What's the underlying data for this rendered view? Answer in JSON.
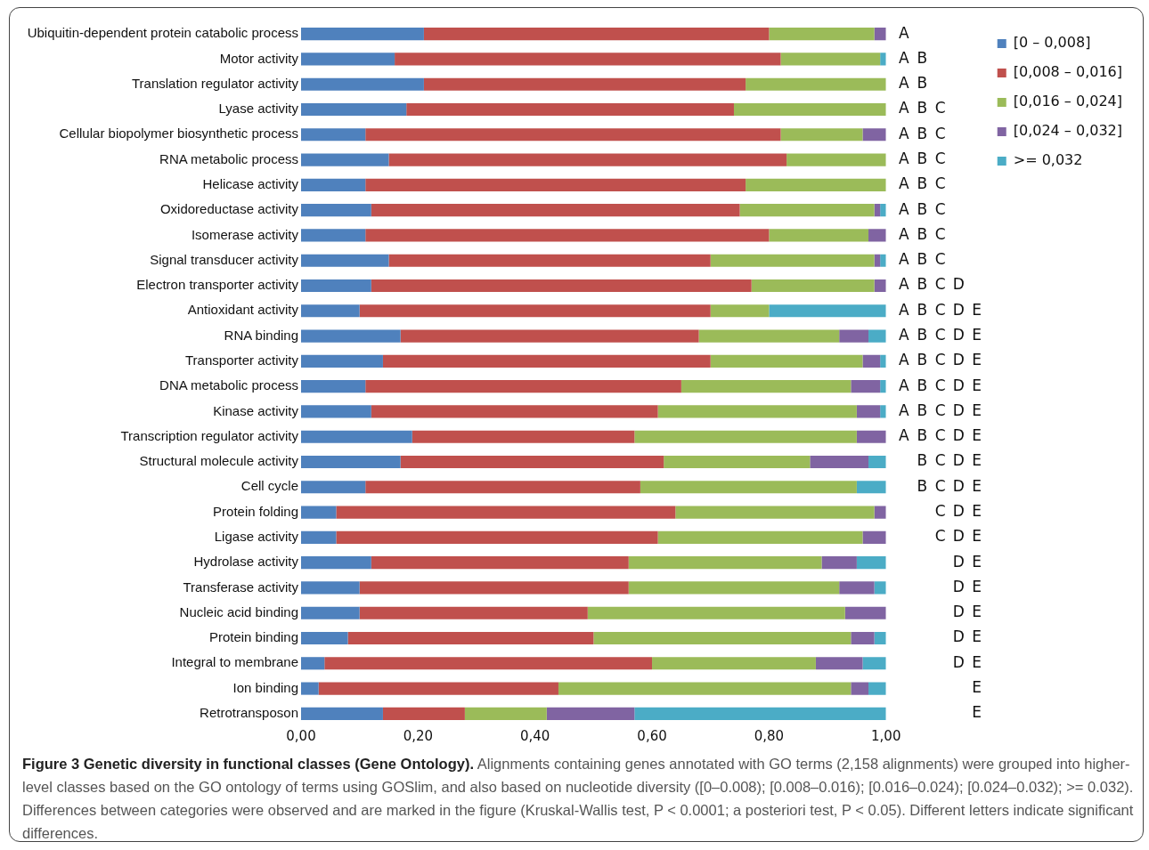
{
  "chart_data": {
    "type": "bar",
    "orientation": "horizontal",
    "stacked": true,
    "title": "Figure 3 Genetic diversity in functional classes (Gene Ontology).",
    "subtitle": "Alignments containing genes annotated with GO terms (2,158 alignments) were grouped into higher-level classes based on the GO ontology of terms using GOSlim, and also based on nucleotide diversity ([0–0.008); [0.008–0.016); [0.016–0.024); [0.024–0.032); >= 0.032). Differences between categories were observed and are marked in the figure (Kruskal-Wallis test, P < 0.0001; a posteriori test, P < 0.05). Different letters indicate significant differences.",
    "categories": [
      "Ubiquitin-dependent protein catabolic process",
      "Motor activity",
      "Translation regulator activity",
      "Lyase activity",
      "Cellular biopolymer biosynthetic process",
      "RNA metabolic process",
      "Helicase activity",
      "Oxidoreductase activity",
      "Isomerase activity",
      "Signal transducer activity",
      "Electron transporter activity",
      "Antioxidant activity",
      "RNA binding",
      "Transporter activity",
      "DNA metabolic process",
      "Kinase activity",
      "Transcription regulator activity",
      "Structural molecule activity",
      "Cell cycle",
      "Protein folding",
      "Ligase activity",
      "Hydrolase activity",
      "Transferase activity",
      "Nucleic acid binding",
      "Protein binding",
      "Integral to membrane",
      "Ion binding",
      "Retrotransposon"
    ],
    "series": [
      {
        "name": "[0 – 0,008]",
        "color": "#4f81bd",
        "values": [
          0.21,
          0.16,
          0.21,
          0.18,
          0.11,
          0.15,
          0.11,
          0.12,
          0.11,
          0.15,
          0.12,
          0.1,
          0.17,
          0.14,
          0.11,
          0.12,
          0.19,
          0.17,
          0.11,
          0.06,
          0.06,
          0.12,
          0.1,
          0.1,
          0.08,
          0.04,
          0.03,
          0.14
        ]
      },
      {
        "name": "[0,008 – 0,016]",
        "color": "#c0504d",
        "values": [
          0.59,
          0.66,
          0.55,
          0.56,
          0.71,
          0.68,
          0.65,
          0.63,
          0.69,
          0.55,
          0.65,
          0.6,
          0.51,
          0.56,
          0.54,
          0.49,
          0.38,
          0.45,
          0.47,
          0.58,
          0.55,
          0.44,
          0.46,
          0.39,
          0.42,
          0.56,
          0.41,
          0.14
        ]
      },
      {
        "name": "[0,016 – 0,024]",
        "color": "#9bbb59",
        "values": [
          0.18,
          0.17,
          0.24,
          0.26,
          0.14,
          0.17,
          0.24,
          0.23,
          0.17,
          0.28,
          0.21,
          0.1,
          0.24,
          0.26,
          0.29,
          0.34,
          0.38,
          0.25,
          0.37,
          0.34,
          0.35,
          0.33,
          0.36,
          0.44,
          0.44,
          0.28,
          0.5,
          0.14
        ]
      },
      {
        "name": "[0,024 – 0,032]",
        "color": "#8064a2",
        "values": [
          0.02,
          0,
          0,
          0,
          0.04,
          0,
          0,
          0.01,
          0.03,
          0.01,
          0.02,
          0,
          0.05,
          0.03,
          0.05,
          0.04,
          0.05,
          0.1,
          0,
          0.02,
          0.04,
          0.06,
          0.06,
          0.07,
          0.04,
          0.08,
          0.03,
          0.15
        ]
      },
      {
        "name": ">= 0,032",
        "color": "#4bacc6",
        "values": [
          0,
          0.01,
          0,
          0,
          0,
          0,
          0,
          0.01,
          0,
          0.01,
          0,
          0.2,
          0.03,
          0.01,
          0.01,
          0.01,
          0,
          0.03,
          0.05,
          0,
          0,
          0.05,
          0.02,
          0,
          0.02,
          0.04,
          0.03,
          0.43
        ]
      }
    ],
    "xlim": [
      0,
      1
    ],
    "xticks": [
      {
        "value": 0,
        "label": "0,00"
      },
      {
        "value": 0.2,
        "label": "0,20"
      },
      {
        "value": 0.4,
        "label": "0,40"
      },
      {
        "value": 0.6,
        "label": "0,60"
      },
      {
        "value": 0.8,
        "label": "0,80"
      },
      {
        "value": 1,
        "label": "1,00"
      }
    ],
    "legend": "top right",
    "annotations": [
      "A",
      "A B",
      "A B",
      "A B C",
      "A B C",
      "A B C",
      "A B C",
      "A B C",
      "A B C",
      "A B C",
      "A B C D",
      "A B C D E",
      "A B C D E",
      "A B C D E",
      "A B C D E",
      "A B C D E",
      "A B C D E",
      "B C D E",
      "B C D E",
      "C D E",
      "C D E",
      "D E",
      "D E",
      "D E",
      "D E",
      "D E",
      "E",
      "E"
    ]
  }
}
